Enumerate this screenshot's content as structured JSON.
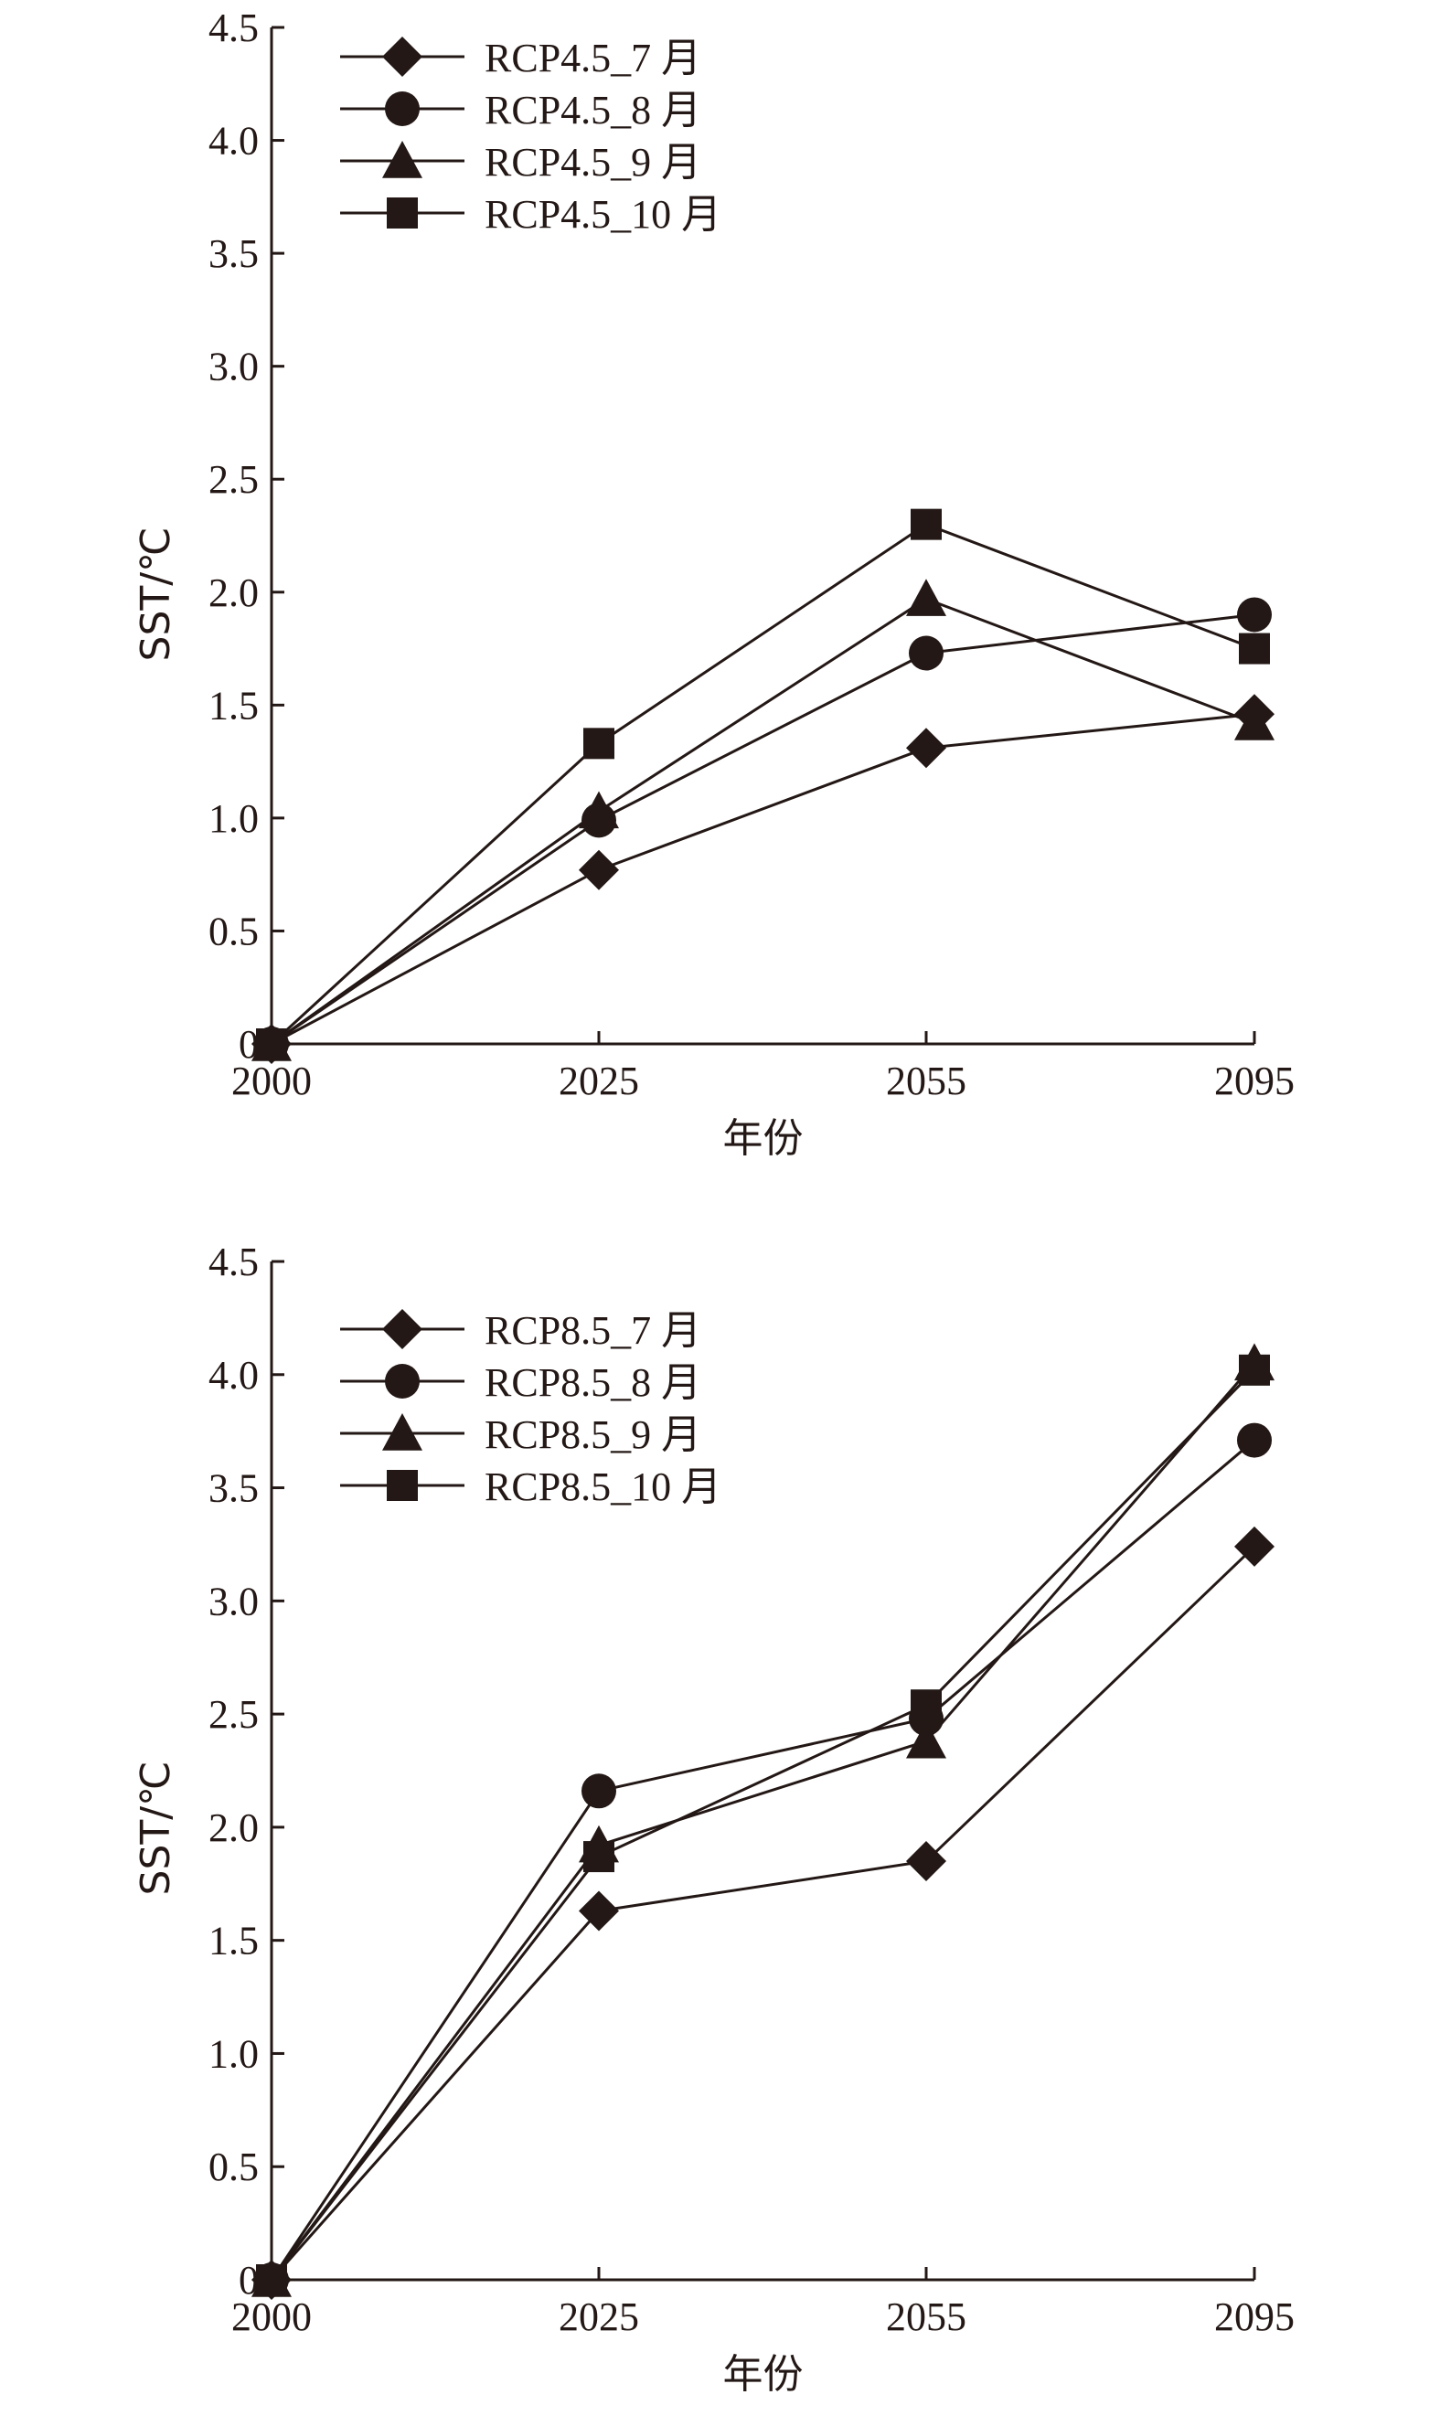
{
  "chart_data": [
    {
      "type": "line",
      "xlabel": "年份",
      "ylabel": "SST/℃",
      "categories": [
        "2000",
        "2025",
        "2055",
        "2095"
      ],
      "ylim": [
        0,
        4.5
      ],
      "yticks": [
        "0",
        "0.5",
        "1.0",
        "1.5",
        "2.0",
        "2.5",
        "3.0",
        "3.5",
        "4.0",
        "4.5"
      ],
      "legend_position": "top-left",
      "series": [
        {
          "name": "RCP4.5_7 月",
          "marker": "diamond",
          "values": [
            0,
            0.77,
            1.31,
            1.46
          ]
        },
        {
          "name": "RCP4.5_8 月",
          "marker": "circle",
          "values": [
            0,
            0.99,
            1.73,
            1.9
          ]
        },
        {
          "name": "RCP4.5_9 月",
          "marker": "triangle",
          "values": [
            0,
            1.03,
            1.97,
            1.42
          ]
        },
        {
          "name": "RCP4.5_10 月",
          "marker": "square",
          "values": [
            0,
            1.33,
            2.3,
            1.75
          ]
        }
      ]
    },
    {
      "type": "line",
      "xlabel": "年份",
      "ylabel": "SST/℃",
      "categories": [
        "2000",
        "2025",
        "2055",
        "2095"
      ],
      "ylim": [
        0,
        4.5
      ],
      "yticks": [
        "0",
        "0.5",
        "1.0",
        "1.5",
        "2.0",
        "2.5",
        "3.0",
        "3.5",
        "4.0",
        "4.5"
      ],
      "legend_position": "top-left",
      "series": [
        {
          "name": "RCP8.5_7 月",
          "marker": "diamond",
          "values": [
            0,
            1.63,
            1.85,
            3.24
          ]
        },
        {
          "name": "RCP8.5_8 月",
          "marker": "circle",
          "values": [
            0,
            2.16,
            2.48,
            3.71
          ]
        },
        {
          "name": "RCP8.5_9 月",
          "marker": "triangle",
          "values": [
            0,
            1.92,
            2.38,
            4.05
          ]
        },
        {
          "name": "RCP8.5_10 月",
          "marker": "square",
          "values": [
            0,
            1.87,
            2.54,
            4.02
          ]
        }
      ]
    }
  ]
}
